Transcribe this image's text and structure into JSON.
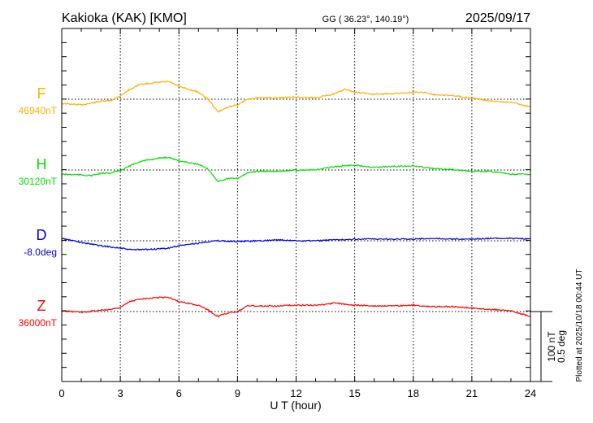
{
  "header": {
    "station": "Kakioka (KAK)  [KMO]",
    "coords": "GG ( 36.23°, 140.19°)",
    "date": "2025/09/17"
  },
  "footer": {
    "plotted": "Plotted at 2025/10/18 00:44 UT"
  },
  "chart_data": {
    "type": "line",
    "xlabel": "U T (hour)",
    "xlim": [
      0,
      24
    ],
    "xticks": [
      "0",
      "3",
      "6",
      "9",
      "12",
      "15",
      "18",
      "21",
      "24"
    ],
    "grid": "dotted vertical every 3 hours; dotted baseline per component",
    "scale_bar": {
      "nT": "100 nT",
      "deg": "0.5 deg",
      "nT_value": 100,
      "deg_value": 0.5
    },
    "series": [
      {
        "name": "F",
        "baseline_label": "46940nT",
        "baseline": 46940,
        "unit": "nT",
        "color": "#ffb000",
        "x": [
          0,
          1,
          2,
          2.5,
          3,
          3.5,
          4,
          5,
          5.5,
          6,
          7,
          7.5,
          8,
          8.5,
          9,
          9.5,
          10,
          11,
          12,
          13,
          14,
          14.5,
          15,
          16,
          17,
          18,
          18.5,
          19,
          20,
          21,
          22,
          23,
          24
        ],
        "y": [
          46934,
          46932,
          46937,
          46938,
          46945,
          46954,
          46961,
          46964,
          46965,
          46958,
          46950,
          46940,
          46922,
          46929,
          46932,
          46940,
          46942,
          46942,
          46943,
          46942,
          46948,
          46954,
          46950,
          46947,
          46948,
          46950,
          46950,
          46947,
          46945,
          46942,
          46937,
          46936,
          46929
        ]
      },
      {
        "name": "H",
        "baseline_label": "30120nT",
        "baseline": 30120,
        "unit": "nT",
        "color": "#00e000",
        "x": [
          0,
          1,
          1.5,
          2,
          2.5,
          3,
          3.5,
          4,
          5,
          5.5,
          6,
          7,
          7.5,
          8,
          8.5,
          9,
          9.5,
          10,
          11,
          12,
          13,
          14,
          15,
          16,
          17,
          18,
          19,
          20,
          21,
          22,
          23,
          24
        ],
        "y": [
          30114,
          30113,
          30112,
          30115,
          30116,
          30119,
          30126,
          30132,
          30137,
          30138,
          30133,
          30128,
          30121,
          30104,
          30108,
          30108,
          30116,
          30118,
          30118,
          30120,
          30120,
          30125,
          30127,
          30124,
          30125,
          30126,
          30122,
          30121,
          30118,
          30118,
          30114,
          30114
        ]
      },
      {
        "name": "D",
        "baseline_label": "-8.0deg",
        "baseline": -8.0,
        "unit": "deg",
        "color": "#0000e0",
        "x": [
          0,
          1,
          2,
          3,
          3.5,
          4,
          5,
          5.5,
          6,
          7,
          7.5,
          8,
          9,
          10,
          11,
          12,
          13,
          14,
          15,
          16,
          17,
          18,
          19,
          20,
          21,
          22,
          23,
          24
        ],
        "y": [
          -7.983,
          -8.012,
          -8.035,
          -8.052,
          -8.063,
          -8.063,
          -8.058,
          -8.052,
          -8.035,
          -8.017,
          -8.006,
          -8.0,
          -8.006,
          -8.0,
          -7.994,
          -8.0,
          -8.0,
          -7.994,
          -7.988,
          -7.988,
          -7.988,
          -7.988,
          -7.983,
          -7.988,
          -7.988,
          -7.983,
          -7.983,
          -7.988
        ]
      },
      {
        "name": "Z",
        "baseline_label": "36000nT",
        "baseline": 36000,
        "unit": "nT",
        "color": "#ff0000",
        "x": [
          0,
          1,
          2,
          2.5,
          3,
          3.5,
          4,
          5,
          5.5,
          6,
          7,
          7.5,
          8,
          8.5,
          9,
          9.5,
          10,
          11,
          12,
          13,
          14,
          15,
          16,
          17,
          18,
          19,
          20,
          21,
          22,
          23,
          24
        ],
        "y": [
          36001,
          35999,
          36002,
          36003,
          36006,
          36014,
          36018,
          36020,
          36020,
          36014,
          36009,
          36002,
          35993,
          35998,
          36000,
          36008,
          36008,
          36008,
          36009,
          36009,
          36012,
          36009,
          36008,
          36008,
          36009,
          36007,
          36007,
          36005,
          36003,
          36001,
          35993
        ]
      }
    ]
  }
}
